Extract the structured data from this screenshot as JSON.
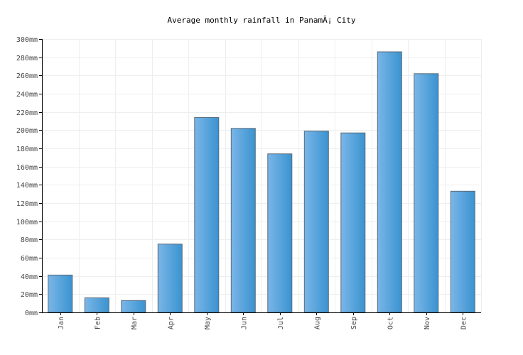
{
  "chart_data": {
    "type": "bar",
    "title": "Average monthly rainfall in PanamÃ¡ City",
    "xlabel": "",
    "ylabel": "",
    "unit": "mm",
    "categories": [
      "Jan",
      "Feb",
      "Mar",
      "Apr",
      "May",
      "Jun",
      "Jul",
      "Aug",
      "Sep",
      "Oct",
      "Nov",
      "Dec"
    ],
    "values": [
      41,
      16,
      13,
      75,
      214,
      202,
      174,
      199,
      197,
      286,
      262,
      133
    ],
    "ylim": [
      0,
      300
    ],
    "y_ticks": [
      0,
      20,
      40,
      60,
      80,
      100,
      120,
      140,
      160,
      180,
      200,
      220,
      240,
      260,
      280,
      300
    ],
    "y_tick_labels": [
      "0mm",
      "20mm",
      "40mm",
      "60mm",
      "80mm",
      "100mm",
      "120mm",
      "140mm",
      "160mm",
      "180mm",
      "200mm",
      "220mm",
      "240mm",
      "260mm",
      "280mm",
      "300mm"
    ],
    "grid": true,
    "legend": "none",
    "colors": {
      "bar_light": "#7ab6e8",
      "bar_dark": "#3a93d0",
      "bar_edge": "#5a6a78",
      "grid": "#eeeeee",
      "axis": "#000000"
    }
  }
}
